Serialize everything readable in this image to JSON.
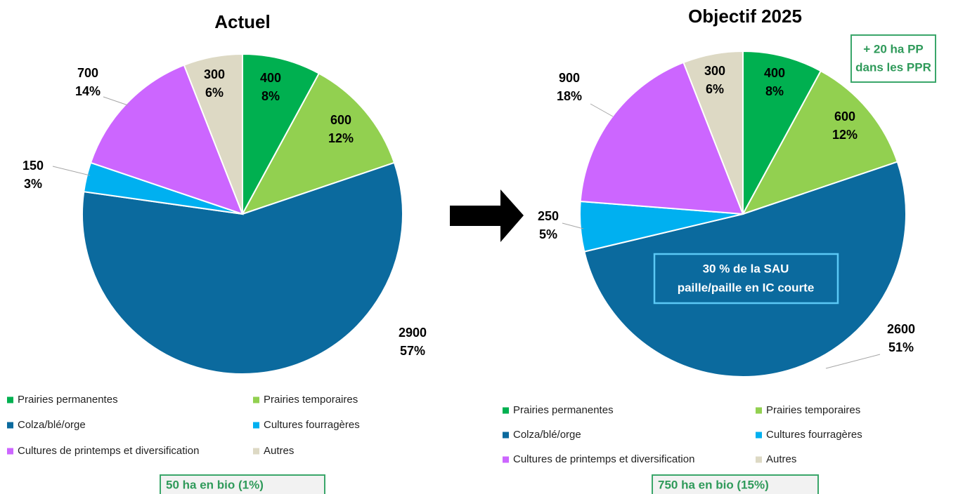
{
  "chart_data": [
    {
      "type": "pie",
      "title": "Actuel",
      "categories": [
        "Prairies permanentes",
        "Prairies temporaires",
        "Colza/blé/orge",
        "Cultures fourragères",
        "Cultures de printemps et diversification",
        "Autres"
      ],
      "values": [
        400,
        600,
        2900,
        150,
        700,
        300
      ],
      "percent_labels": [
        "8%",
        "12%",
        "57%",
        "3%",
        "14%",
        "6%"
      ],
      "colors": [
        "#00b050",
        "#92d050",
        "#0b6a9e",
        "#00b0f0",
        "#cc66ff",
        "#ddd9c4"
      ],
      "annotations": [
        "50 ha en bio (1%)"
      ]
    },
    {
      "type": "pie",
      "title": "Objectif 2025",
      "categories": [
        "Prairies permanentes",
        "Prairies temporaires",
        "Colza/blé/orge",
        "Cultures fourragères",
        "Cultures de printemps et diversification",
        "Autres"
      ],
      "values": [
        400,
        600,
        2600,
        250,
        900,
        300
      ],
      "percent_labels": [
        "8%",
        "12%",
        "51%",
        "5%",
        "18%",
        "6%"
      ],
      "colors": [
        "#00b050",
        "#92d050",
        "#0b6a9e",
        "#00b0f0",
        "#cc66ff",
        "#ddd9c4"
      ],
      "annotations": [
        "750 ha en bio (15%)",
        "+ 20 ha PP",
        "dans les PPR",
        "30 % de la SAU",
        "paille/paille en IC courte"
      ]
    }
  ]
}
